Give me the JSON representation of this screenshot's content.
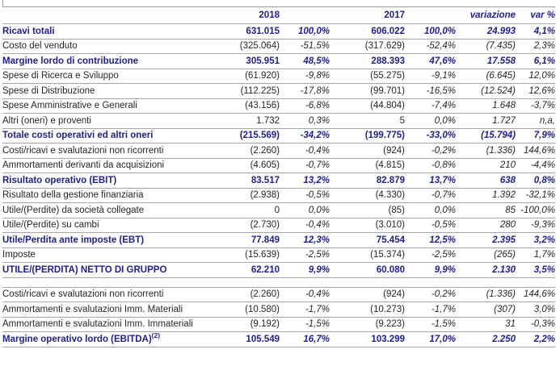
{
  "colors": {
    "accent_navy": "#1e1e96",
    "body_text": "#262626",
    "rule_gray": "#a6a6a6"
  },
  "table": {
    "header": {
      "year_current": "2018",
      "year_prior": "2017",
      "variation": "variazione",
      "variation_pct": "var %"
    },
    "rows": [
      {
        "label": "Ricavi totali",
        "y2018": "631.015",
        "p2018": "100,0%",
        "y2017": "606.022",
        "p2017": "100,0%",
        "chg": "24.993",
        "chgp": "4,1%",
        "hl": true
      },
      {
        "label": "Costo del venduto",
        "y2018": "(325.064)",
        "p2018": "-51,5%",
        "y2017": "(317.629)",
        "p2017": "-52,4%",
        "chg": "(7.435)",
        "chgp": "2,3%",
        "hl": false
      },
      {
        "label": "Margine lordo di contribuzione",
        "y2018": "305.951",
        "p2018": "48,5%",
        "y2017": "288.393",
        "p2017": "47,6%",
        "chg": "17.558",
        "chgp": "6,1%",
        "hl": true
      },
      {
        "label": "Spese di Ricerca e Sviluppo",
        "y2018": "(61.920)",
        "p2018": "-9,8%",
        "y2017": "(55.275)",
        "p2017": "-9,1%",
        "chg": "(6.645)",
        "chgp": "12,0%",
        "hl": false
      },
      {
        "label": "Spese di Distribuzione",
        "y2018": "(112.225)",
        "p2018": "-17,8%",
        "y2017": "(99.701)",
        "p2017": "-16,5%",
        "chg": "(12.524)",
        "chgp": "12,6%",
        "hl": false
      },
      {
        "label": "Spese Amministrative e Generali",
        "y2018": "(43.156)",
        "p2018": "-6,8%",
        "y2017": "(44.804)",
        "p2017": "-7,4%",
        "chg": "1.648",
        "chgp": "-3,7%",
        "hl": false
      },
      {
        "label": "Altri (oneri) e proventi",
        "y2018": "1.732",
        "p2018": "0,3%",
        "y2017": "5",
        "p2017": "0,0%",
        "chg": "1.727",
        "chgp": "n,a,",
        "hl": false
      },
      {
        "label": "Totale costi operativi ed altri oneri",
        "y2018": "(215.569)",
        "p2018": "-34,2%",
        "y2017": "(199.775)",
        "p2017": "-33,0%",
        "chg": "(15.794)",
        "chgp": "7,9%",
        "hl": true
      },
      {
        "label": "Costi/ricavi e svalutazioni non ricorrenti",
        "y2018": "(2.260)",
        "p2018": "-0,4%",
        "y2017": "(924)",
        "p2017": "-0,2%",
        "chg": "(1.336)",
        "chgp": "144,6%",
        "hl": false
      },
      {
        "label": "Ammortamenti derivanti da acquisizioni",
        "y2018": "(4.605)",
        "p2018": "-0,7%",
        "y2017": "(4.815)",
        "p2017": "-0,8%",
        "chg": "210",
        "chgp": "-4,4%",
        "hl": false
      },
      {
        "label": "Risultato operativo (EBIT)",
        "y2018": "83.517",
        "p2018": "13,2%",
        "y2017": "82.879",
        "p2017": "13,7%",
        "chg": "638",
        "chgp": "0,8%",
        "hl": true
      },
      {
        "label": "Risultato della gestione finanziaria",
        "y2018": "(2.938)",
        "p2018": "-0,5%",
        "y2017": "(4.330)",
        "p2017": "-0,7%",
        "chg": "1.392",
        "chgp": "-32,1%",
        "hl": false
      },
      {
        "label": "Utile/(Perdite) da società collegate",
        "y2018": "0",
        "p2018": "0,0%",
        "y2017": "(85)",
        "p2017": "0,0%",
        "chg": "85",
        "chgp": "-100,0%",
        "hl": false
      },
      {
        "label": "Utile/(Perdite) su cambi",
        "y2018": "(2.730)",
        "p2018": "-0,4%",
        "y2017": "(3.010)",
        "p2017": "-0,5%",
        "chg": "280",
        "chgp": "-9,3%",
        "hl": false
      },
      {
        "label": "Utile/Perdita ante imposte (EBT)",
        "y2018": "77.849",
        "p2018": "12,3%",
        "y2017": "75.454",
        "p2017": "12,5%",
        "chg": "2.395",
        "chgp": "3,2%",
        "hl": true
      },
      {
        "label": "Imposte",
        "y2018": "(15.639)",
        "p2018": "-2,5%",
        "y2017": "(15.374)",
        "p2017": "-2,5%",
        "chg": "(265)",
        "chgp": "1,7%",
        "hl": false
      },
      {
        "label": "UTILE/(PERDITA) NETTO DI GRUPPO",
        "y2018": "62.210",
        "p2018": "9,9%",
        "y2017": "60.080",
        "p2017": "9,9%",
        "chg": "2.130",
        "chgp": "3,5%",
        "hl": true
      },
      {
        "type": "spacer"
      },
      {
        "label": "Costi/ricavi e svalutazioni non ricorrenti",
        "y2018": "(2.260)",
        "p2018": "-0,4%",
        "y2017": "(924)",
        "p2017": "-0,2%",
        "chg": "(1.336)",
        "chgp": "144,6%",
        "hl": false
      },
      {
        "label": "Ammortamenti e svalutazioni Imm. Materiali",
        "y2018": "(10.580)",
        "p2018": "-1,7%",
        "y2017": "(10.273)",
        "p2017": "-1,7%",
        "chg": "(307)",
        "chgp": "3,0%",
        "hl": false
      },
      {
        "label": "Ammortamenti e svalutazioni Imm. Immateriali",
        "y2018": "(9.192)",
        "p2018": "-1,5%",
        "y2017": "(9.223)",
        "p2017": "-1,5%",
        "chg": "31",
        "chgp": "-0,3%",
        "hl": false
      },
      {
        "label": "Margine operativo lordo (EBITDA)",
        "label_sup": "(2)",
        "y2018": "105.549",
        "p2018": "16,7%",
        "y2017": "103.299",
        "p2017": "17,0%",
        "chg": "2.250",
        "chgp": "2,2%",
        "hl": true
      }
    ]
  }
}
